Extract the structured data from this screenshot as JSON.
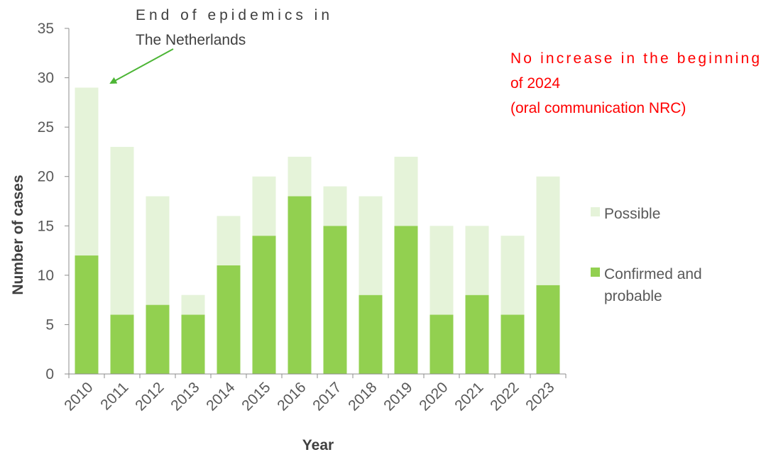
{
  "chart_data": {
    "type": "bar",
    "stacked": true,
    "categories": [
      "2010",
      "2011",
      "2012",
      "2013",
      "2014",
      "2015",
      "2016",
      "2017",
      "2018",
      "2019",
      "2020",
      "2021",
      "2022",
      "2023"
    ],
    "series": [
      {
        "name": "Confirmed and probable",
        "color": "#92d050",
        "values": [
          12,
          6,
          7,
          6,
          11,
          14,
          18,
          15,
          8,
          15,
          6,
          8,
          6,
          9
        ]
      },
      {
        "name": "Possible",
        "color": "#e5f3d9",
        "values": [
          17,
          17,
          11,
          2,
          5,
          6,
          4,
          4,
          10,
          7,
          9,
          7,
          8,
          11
        ]
      }
    ],
    "xlabel": "Year",
    "ylabel": "Number of cases",
    "ylim": [
      0,
      35
    ],
    "yticks": [
      0,
      5,
      10,
      15,
      20,
      25,
      30,
      35
    ],
    "grid": false,
    "legend": {
      "position": "right",
      "items": [
        {
          "lines": [
            "Possible"
          ],
          "color": "#e5f3d9"
        },
        {
          "lines": [
            "Confirmed and",
            "probable"
          ],
          "color": "#92d050"
        }
      ]
    },
    "annotations": {
      "epidemic": {
        "lines": [
          "End of epidemics in",
          "The Netherlands"
        ],
        "arrow_color": "#4cb535",
        "target_category": "2010",
        "target_value": 29
      },
      "note": {
        "lines": [
          "No increase in the beginning",
          "of 2024",
          "(oral communication NRC)"
        ],
        "color": "#ff0000"
      }
    }
  }
}
